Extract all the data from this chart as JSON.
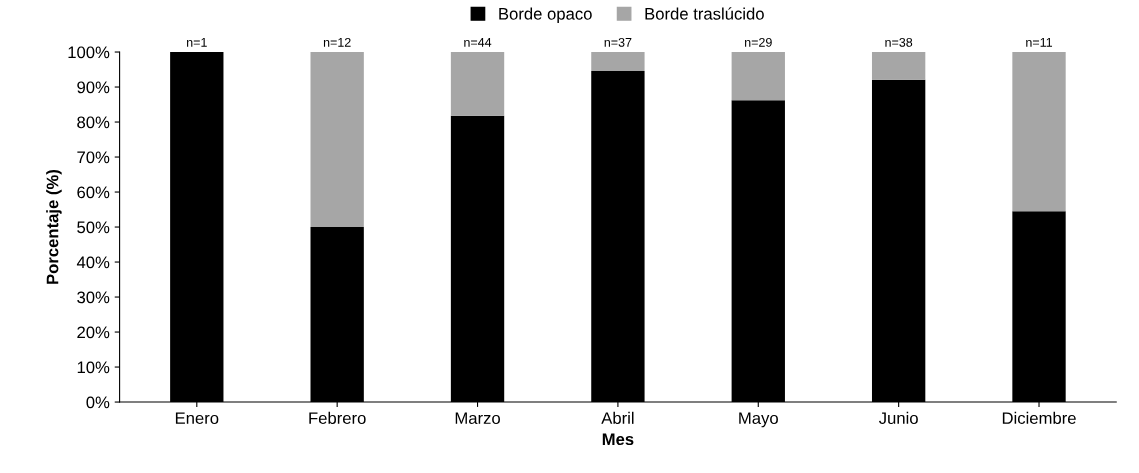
{
  "chart_data": {
    "type": "bar",
    "stacked": true,
    "xlabel": "Mes",
    "ylabel": "Porcentaje (%)",
    "categories": [
      "Enero",
      "Febrero",
      "Marzo",
      "Abril",
      "Mayo",
      "Junio",
      "Diciembre"
    ],
    "series": [
      {
        "name": "Borde opaco",
        "color": "#000000",
        "values": [
          100,
          50,
          81.8,
          94.6,
          86.2,
          92.1,
          54.5
        ]
      },
      {
        "name": "Borde traslúcido",
        "color": "#a6a6a6",
        "values": [
          0,
          50,
          18.2,
          5.4,
          13.8,
          7.9,
          45.5
        ]
      }
    ],
    "ylim": [
      0,
      100
    ],
    "yticks": [
      {
        "value": 0,
        "label": "0%"
      },
      {
        "value": 10,
        "label": "10%"
      },
      {
        "value": 20,
        "label": "20%"
      },
      {
        "value": 30,
        "label": "30%"
      },
      {
        "value": 40,
        "label": "40%"
      },
      {
        "value": 50,
        "label": "50%"
      },
      {
        "value": 60,
        "label": "60%"
      },
      {
        "value": 70,
        "label": "70%"
      },
      {
        "value": 80,
        "label": "80%"
      },
      {
        "value": 90,
        "label": "90%"
      },
      {
        "value": 100,
        "label": "100%"
      }
    ],
    "annotations": [
      {
        "text": "n=1",
        "x": "Enero",
        "y": 100
      },
      {
        "text": "n=12",
        "x": "Febrero",
        "y": 100
      },
      {
        "text": "n=44",
        "x": "Marzo",
        "y": 100
      },
      {
        "text": "n=37",
        "x": "Abril",
        "y": 100
      },
      {
        "text": "n=29",
        "x": "Mayo",
        "y": 100
      },
      {
        "text": "n=38",
        "x": "Junio",
        "y": 100
      },
      {
        "text": "n=11",
        "x": "Diciembre",
        "y": 100
      }
    ],
    "grid": false,
    "legend": "top"
  }
}
